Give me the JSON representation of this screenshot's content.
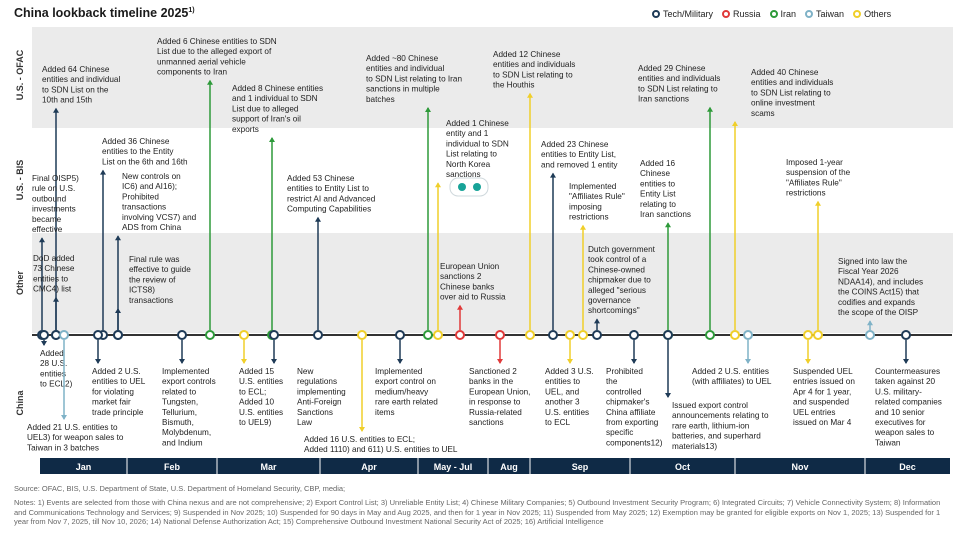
{
  "title": "China lookback timeline 2025",
  "title_sup": "1)",
  "legend": [
    {
      "label": "Tech/Military",
      "color": "#1f3b57"
    },
    {
      "label": "Russia",
      "color": "#e03a3a"
    },
    {
      "label": "Iran",
      "color": "#2e9a3a"
    },
    {
      "label": "Taiwan",
      "color": "#7fb2c7"
    },
    {
      "label": "Others",
      "color": "#f0cf2a"
    }
  ],
  "rows": [
    "U.S. - OFAC",
    "U.S. - BIS",
    "Other",
    "China"
  ],
  "source": "Source: OFAC, BIS, U.S. Department of State, U.S. Department of Homeland Security, CBP, media;",
  "notes": "Notes: 1) Events are selected from those with China nexus and are not comprehensive; 2) Export Control List; 3) Unreliable Entity List; 4) Chinese Military Companies; 5) Outbound Investment Security Program; 6) Integrated Circuits; 7) Vehicle Connectivity System; 8) Information and Communications Technology and Services; 9) Suspended in Nov 2025; 10) Suspended for 90 days in May and Aug 2025, and then for 1 year in Nov 2025; 11) Suspended from May 2025; 12) Exemption may be granted for eligible exports on Nov 1, 2025; 13) Suspended for 1 year from Nov 7, 2025, till Nov 10, 2026; 14) National Defense Authorization Act; 15) Comprehensive Outbound Investment National Security Act of 2025; 16) Artificial Intelligence",
  "chart_data": {
    "type": "timeline",
    "months": [
      "Jan",
      "Feb",
      "Mar",
      "Apr",
      "May - Jul",
      "Aug",
      "Sep",
      "Oct",
      "Nov",
      "Dec"
    ],
    "events": [
      {
        "month": "Jan",
        "row": "U.S. - OFAC",
        "category": "Tech/Military",
        "text": [
          "Added 64 Chinese",
          "entities and individual",
          "to SDN List on the",
          "10th and 15th"
        ]
      },
      {
        "month": "Jan",
        "row": "U.S. - BIS",
        "category": "Tech/Military",
        "text": [
          "Final OISP5)",
          "rule on U.S.",
          "outbound",
          "investments",
          "became",
          "effective"
        ]
      },
      {
        "month": "Jan",
        "row": "U.S. - BIS",
        "category": "Tech/Military",
        "text": [
          "Added 36 Chinese",
          "entities to the Entity",
          "List on the 6th and 16th"
        ]
      },
      {
        "month": "Jan",
        "row": "U.S. - BIS",
        "category": "Tech/Military",
        "text": [
          "New controls on",
          "IC6) and AI16);",
          "Prohibited",
          "transactions",
          "involving VCS7) and",
          "ADS from China"
        ]
      },
      {
        "month": "Jan",
        "row": "Other",
        "category": "Tech/Military",
        "text": [
          "DoD added",
          "73 Chinese",
          "entities to",
          "CMC4) list"
        ]
      },
      {
        "month": "Jan",
        "row": "Other",
        "category": "Tech/Military",
        "text": [
          "Final rule was",
          "effective to guide",
          "the review of",
          "ICTS8)",
          "transactions"
        ]
      },
      {
        "month": "Feb",
        "row": "U.S. - OFAC",
        "category": "Iran",
        "text": [
          "Added 6 Chinese entities to SDN",
          "List due to the alleged export of",
          "unmanned aerial vehicle",
          "components to Iran"
        ]
      },
      {
        "month": "Mar",
        "row": "U.S. - OFAC",
        "category": "Iran",
        "text": [
          "Added 8 Chinese entities",
          "and 1 individual to SDN",
          "List due to alleged",
          "support of Iran's oil",
          "exports"
        ]
      },
      {
        "month": "Mar",
        "row": "U.S. - BIS",
        "category": "Tech/Military",
        "text": [
          "Added 53 Chinese",
          "entities to Entity List to",
          "restrict AI and Advanced",
          "Computing Capabilities"
        ]
      },
      {
        "month": "Apr",
        "row": "U.S. - OFAC",
        "category": "Iran",
        "text": [
          "Added ~80 Chinese",
          "entities and individual",
          "to SDN List relating to Iran",
          "sanctions in multiple",
          "batches"
        ]
      },
      {
        "month": "May - Jul",
        "row": "U.S. - BIS",
        "category": "Others",
        "text": [
          "Added 1 Chinese",
          "entity and 1",
          "individual to SDN",
          "List relating to",
          "North Korea",
          "sanctions"
        ]
      },
      {
        "month": "May - Jul",
        "row": "Other",
        "category": "Russia",
        "text": [
          "European Union",
          "sanctions 2",
          "Chinese banks",
          "over aid to Russia"
        ]
      },
      {
        "month": "May - Jul",
        "row": "U.S. - OFAC",
        "category": "Others",
        "text": [
          "Added 12 Chinese",
          "entities and individuals",
          "to SDN List relating to",
          "the Houthis"
        ]
      },
      {
        "month": "Sep",
        "row": "U.S. - BIS",
        "category": "Tech/Military",
        "text": [
          "Added 23 Chinese",
          "entities to Entity List,",
          "and removed 1 entity"
        ]
      },
      {
        "month": "Sep",
        "row": "U.S. - BIS",
        "category": "Others",
        "text": [
          "Implemented",
          "\"Affiliates Rule\"",
          "imposing",
          "restrictions"
        ]
      },
      {
        "month": "Sep",
        "row": "Other",
        "category": "Tech/Military",
        "text": [
          "Dutch government",
          "took control of a",
          "Chinese-owned",
          "chipmaker due to",
          "alleged \"serious",
          "governance",
          "shortcomings\""
        ]
      },
      {
        "month": "Oct",
        "row": "U.S. - BIS",
        "category": "Iran",
        "text": [
          "Added 16",
          "Chinese",
          "entities to",
          "Entity List",
          "relating to",
          "Iran sanctions"
        ]
      },
      {
        "month": "Oct",
        "row": "U.S. - OFAC",
        "category": "Iran",
        "text": [
          "Added 29 Chinese",
          "entities and individuals",
          "to SDN List relating to",
          "Iran sanctions"
        ]
      },
      {
        "month": "Oct",
        "row": "U.S. - OFAC",
        "category": "Others",
        "text": [
          "Added 40 Chinese",
          "entities and individuals",
          "to SDN List relating to",
          "online investment",
          "scams"
        ]
      },
      {
        "month": "Nov",
        "row": "U.S. - BIS",
        "category": "Others",
        "text": [
          "Imposed 1-year",
          "suspension of the",
          "\"Affiliates Rule\"",
          "restrictions"
        ]
      },
      {
        "month": "Dec",
        "row": "Other",
        "category": "Taiwan",
        "text": [
          "Signed into law the",
          "Fiscal Year 2026",
          "NDAA14), and includes",
          "the COINS Act15) that",
          "codifies and expands",
          "the scope of the OISP"
        ]
      },
      {
        "month": "Jan",
        "row": "China",
        "category": "Tech/Military",
        "text": [
          "Added",
          "28 U.S.",
          "entities",
          "to ECL2)"
        ]
      },
      {
        "month": "Jan",
        "row": "China",
        "category": "Taiwan",
        "text": [
          "Added 21 U.S. entities to",
          "UEL3) for weapon sales to",
          "Taiwan in 3 batches"
        ]
      },
      {
        "month": "Feb",
        "row": "China",
        "category": "Tech/Military",
        "text": [
          "Added 2 U.S.",
          "entities to UEL",
          "for violating",
          "market fair",
          "trade principle"
        ]
      },
      {
        "month": "Feb",
        "row": "China",
        "category": "Tech/Military",
        "text": [
          "Implemented",
          "export controls",
          "related to",
          "Tungsten,",
          "Tellurium,",
          "Bismuth,",
          "Molybdenum,",
          "and Indium"
        ]
      },
      {
        "month": "Mar",
        "row": "China",
        "category": "Others",
        "text": [
          "Added 15",
          "U.S. entities",
          "to ECL;",
          "Added 10",
          "U.S. entities",
          "to UEL9)"
        ]
      },
      {
        "month": "Mar",
        "row": "China",
        "category": "Tech/Military",
        "text": [
          "New",
          "regulations",
          "implementing",
          "Anti-Foreign",
          "Sanctions",
          "Law"
        ]
      },
      {
        "month": "Apr",
        "row": "China",
        "category": "Others",
        "text": [
          "Added 16 U.S. entities to ECL;",
          "Added 1110) and 611) U.S. entities to UEL"
        ]
      },
      {
        "month": "Apr",
        "row": "China",
        "category": "Tech/Military",
        "text": [
          "Implemented",
          "export control on",
          "medium/heavy",
          "rare earth related",
          "items"
        ]
      },
      {
        "month": "Aug",
        "row": "China",
        "category": "Russia",
        "text": [
          "Sanctioned 2",
          "banks in the",
          "European Union,",
          "in response to",
          "Russia-related",
          "sanctions"
        ]
      },
      {
        "month": "Sep",
        "row": "China",
        "category": "Others",
        "text": [
          "Added 3 U.S.",
          "entities to",
          "UEL, and",
          "another 3",
          "U.S. entities",
          "to ECL"
        ]
      },
      {
        "month": "Sep",
        "row": "China",
        "category": "Tech/Military",
        "text": [
          "Prohibited",
          "the",
          "controlled",
          "chipmaker's",
          "China affiliate",
          "from exporting",
          "specific",
          "components12)"
        ]
      },
      {
        "month": "Oct",
        "row": "China",
        "category": "Tech/Military",
        "text": [
          "Issued export control",
          "announcements relating to",
          "rare earth, lithium-ion",
          "batteries, and superhard",
          "materials13)"
        ]
      },
      {
        "month": "Oct",
        "row": "China",
        "category": "Taiwan",
        "text": [
          "Added 2 U.S. entities",
          "(with affiliates) to UEL"
        ]
      },
      {
        "month": "Nov",
        "row": "China",
        "category": "Others",
        "text": [
          "Suspended UEL",
          "entries issued on",
          "Apr 4 for 1 year,",
          "and suspended",
          "UEL entries",
          "issued on Mar 4"
        ]
      },
      {
        "month": "Dec",
        "row": "China",
        "category": "Tech/Military",
        "text": [
          "Countermeasures",
          "taken against 20",
          "U.S. military-",
          "related companies",
          "and 10 senior",
          "executives for",
          "weapon sales to",
          "Taiwan"
        ]
      }
    ]
  }
}
